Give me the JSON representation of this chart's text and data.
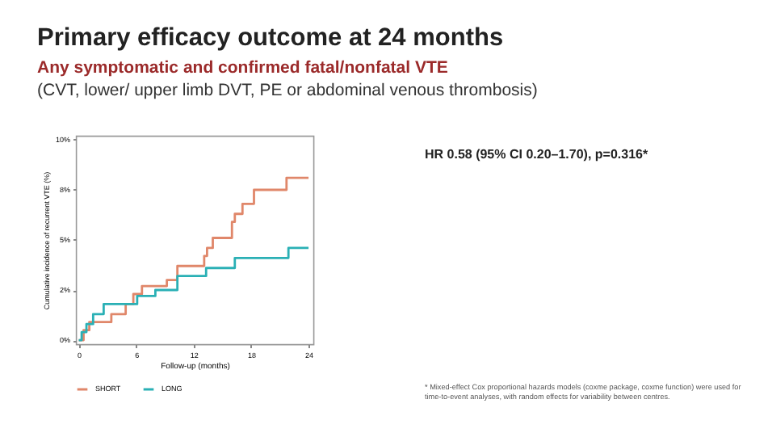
{
  "chart_data": {
    "type": "step",
    "title": "Primary efficacy outcome at 24 months",
    "subtitle": "Any symptomatic and confirmed fatal/nonfatal VTE",
    "xlabel": "Follow-up (months)",
    "ylabel": "Cumulative incidence of recurrent VTE (%)",
    "annotations": [
      "(CVT, lower/ upper limb DVT, PE or abdominal venous thrombosis)",
      "HR 0.58 (95% CI 0.20–1.70), p=0.316*",
      "* Mixed-effect Cox proportional hazards models (coxme package, coxme function) were used for time-to-event analyses, with random effects for variability between centres."
    ],
    "series": [
      {
        "name": "SHORT",
        "color": "#e0876a",
        "x": [
          0,
          0.5,
          1.1,
          3.4,
          4.9,
          5.7,
          6.6,
          9.2,
          10.3,
          13.1,
          13.4,
          14,
          16,
          16.3,
          17.1,
          18.3,
          21.7,
          24
        ],
        "values": [
          0,
          0.5,
          0.9,
          1.3,
          1.8,
          2.3,
          2.7,
          3.0,
          3.7,
          4.2,
          4.6,
          5.1,
          5.9,
          6.3,
          6.8,
          7.5,
          8.1,
          8.1
        ]
      },
      {
        "name": "LONG",
        "color": "#2ab0b5",
        "x": [
          0,
          0.3,
          0.8,
          1.5,
          2.6,
          6.1,
          8.0,
          10.3,
          13.3,
          16.3,
          21.9,
          24
        ],
        "values": [
          0,
          0.4,
          0.8,
          1.3,
          1.8,
          2.2,
          2.5,
          3.2,
          3.6,
          4.1,
          4.6,
          4.6
        ]
      }
    ],
    "xlim": [
      -0.3,
      24.5
    ],
    "xticks": [
      0,
      6,
      12,
      18,
      24
    ],
    "ylim": [
      -0.2,
      10.2
    ],
    "yticks": [
      {
        "value": 0,
        "label": "0%"
      },
      {
        "value": 2.5,
        "label": "2%"
      },
      {
        "value": 5,
        "label": "5%"
      },
      {
        "value": 7.5,
        "label": "8%"
      },
      {
        "value": 10,
        "label": "10%"
      }
    ],
    "grid": false,
    "legend": "bottom",
    "marker": "none",
    "line_style": "solid"
  }
}
